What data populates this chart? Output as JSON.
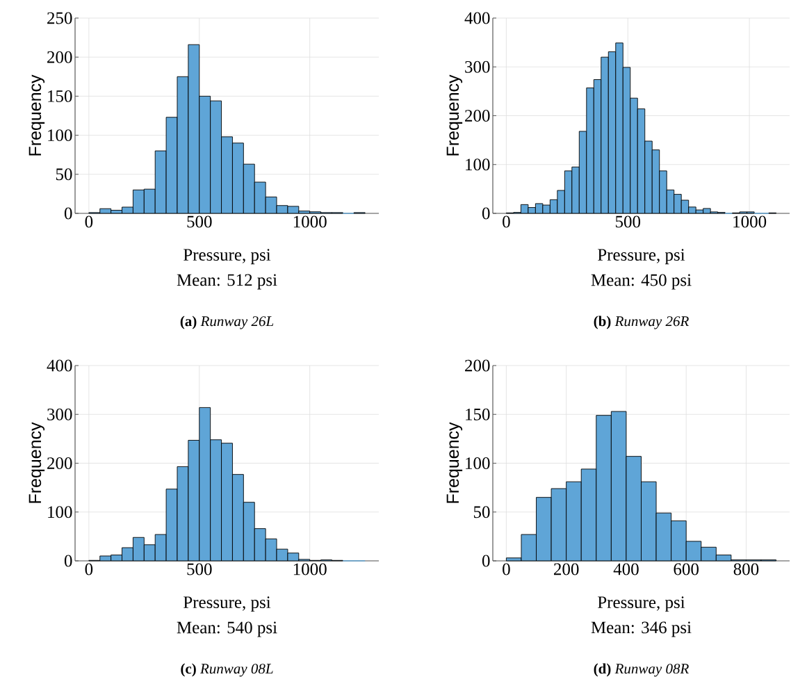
{
  "chart_data": [
    {
      "type": "histogram",
      "title": "**(a)** *Runway 26L*",
      "xlabel": "Pressure, psi",
      "ylabel": "Frequency",
      "annotations": [
        "Mean: 512 psi"
      ],
      "bins": [
        0,
        50,
        100,
        150,
        200,
        250,
        300,
        350,
        400,
        450,
        500,
        550,
        600,
        650,
        700,
        750,
        800,
        850,
        900,
        950,
        1000,
        1050,
        1100,
        1150,
        1200,
        1250
      ],
      "values": [
        1,
        6,
        4,
        8,
        30,
        31,
        80,
        123,
        175,
        216,
        150,
        144,
        98,
        90,
        63,
        40,
        21,
        10,
        9,
        3,
        2,
        1,
        1,
        0,
        1
      ],
      "color": "#5fa5d7",
      "xlim": [
        -62.5,
        1312.5
      ],
      "ylim": [
        0,
        250
      ],
      "xticks": [
        0,
        500,
        1000
      ],
      "yticks": [
        0,
        50,
        100,
        150,
        200,
        250
      ],
      "grid": true
    },
    {
      "type": "histogram",
      "title": "**(b)** *Runway 26R*",
      "xlabel": "Pressure, psi",
      "ylabel": "Frequency",
      "annotations": [
        "Mean: 450 psi"
      ],
      "bins": [
        0,
        30,
        60,
        90,
        120,
        150,
        180,
        210,
        240,
        270,
        300,
        330,
        360,
        390,
        420,
        450,
        480,
        510,
        540,
        570,
        600,
        630,
        660,
        690,
        720,
        750,
        780,
        810,
        840,
        870,
        900,
        930,
        960,
        990,
        1020,
        1050,
        1080,
        1110
      ],
      "values": [
        1,
        2,
        18,
        12,
        20,
        17,
        28,
        47,
        87,
        95,
        168,
        257,
        274,
        320,
        331,
        349,
        299,
        236,
        214,
        148,
        130,
        87,
        48,
        39,
        27,
        13,
        7,
        10,
        3,
        2,
        0,
        1,
        3,
        3,
        0,
        0,
        1
      ],
      "color": "#5fa5d7",
      "xlim": [
        -55.5,
        1165.5
      ],
      "ylim": [
        0,
        400
      ],
      "xticks": [
        0,
        500,
        1000
      ],
      "yticks": [
        0,
        100,
        200,
        300,
        400
      ],
      "grid": true
    },
    {
      "type": "histogram",
      "title": "**(c)** *Runway 08L*",
      "xlabel": "Pressure, psi",
      "ylabel": "Frequency",
      "annotations": [
        "Mean: 540 psi"
      ],
      "bins": [
        0,
        50,
        100,
        150,
        200,
        250,
        300,
        350,
        400,
        450,
        500,
        550,
        600,
        650,
        700,
        750,
        800,
        850,
        900,
        950,
        1000,
        1050,
        1100,
        1150,
        1200,
        1250
      ],
      "values": [
        1,
        10,
        12,
        27,
        48,
        33,
        54,
        147,
        193,
        247,
        314,
        248,
        241,
        177,
        120,
        66,
        45,
        24,
        16,
        3,
        1,
        2,
        1,
        0,
        0
      ],
      "color": "#5fa5d7",
      "xlim": [
        -62.5,
        1312.5
      ],
      "ylim": [
        0,
        400
      ],
      "xticks": [
        0,
        500,
        1000
      ],
      "yticks": [
        0,
        100,
        200,
        300,
        400
      ],
      "grid": true
    },
    {
      "type": "histogram",
      "title": "**(d)** *Runway 08R*",
      "xlabel": "Pressure, psi",
      "ylabel": "Frequency",
      "annotations": [
        "Mean: 346 psi"
      ],
      "bins": [
        0,
        50,
        100,
        150,
        200,
        250,
        300,
        350,
        400,
        450,
        500,
        550,
        600,
        650,
        700,
        750,
        800,
        850,
        900
      ],
      "values": [
        3,
        27,
        65,
        74,
        81,
        94,
        149,
        153,
        107,
        81,
        49,
        41,
        20,
        14,
        6,
        1,
        1,
        1
      ],
      "color": "#5fa5d7",
      "xlim": [
        -45,
        945
      ],
      "ylim": [
        0,
        200
      ],
      "xticks": [
        0,
        200,
        400,
        600,
        800
      ],
      "yticks": [
        0,
        50,
        100,
        150,
        200
      ],
      "grid": true
    }
  ]
}
